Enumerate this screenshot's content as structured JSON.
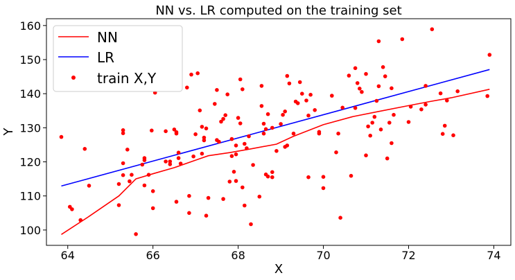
{
  "chart_data": {
    "type": "scatter",
    "title": "NN vs. LR computed on the training set",
    "xlabel": "X",
    "ylabel": "Y",
    "xlim": [
      63.5,
      74.4
    ],
    "ylim": [
      95.5,
      162
    ],
    "xticks": [
      64,
      66,
      68,
      70,
      72,
      74
    ],
    "yticks": [
      100,
      110,
      120,
      130,
      140,
      150,
      160
    ],
    "grid": false,
    "legend_position": "top-left",
    "legend": [
      {
        "label": "NN",
        "kind": "line",
        "color": "#ff0000"
      },
      {
        "label": "LR",
        "kind": "line",
        "color": "#0000ff"
      },
      {
        "label": "train X,Y",
        "kind": "marker",
        "color": "#ff0000"
      }
    ],
    "series": [
      {
        "name": "NN",
        "kind": "line",
        "color": "#ff0000",
        "points": [
          [
            63.85,
            98.7
          ],
          [
            64.5,
            104
          ],
          [
            65.2,
            110
          ],
          [
            65.6,
            115
          ],
          [
            66.0,
            116.5
          ],
          [
            66.5,
            118.3
          ],
          [
            67.0,
            120.5
          ],
          [
            67.3,
            121.8
          ],
          [
            67.8,
            122.7
          ],
          [
            68.3,
            123.8
          ],
          [
            68.9,
            125.2
          ],
          [
            69.3,
            127.5
          ],
          [
            70.0,
            130.9
          ],
          [
            70.7,
            133.3
          ],
          [
            71.3,
            134.8
          ],
          [
            72.0,
            136.5
          ],
          [
            72.5,
            137.7
          ],
          [
            73.0,
            138.8
          ],
          [
            73.9,
            141.3
          ]
        ]
      },
      {
        "name": "LR",
        "kind": "line",
        "color": "#0000ff",
        "points": [
          [
            63.85,
            112.9
          ],
          [
            73.9,
            147.1
          ]
        ]
      },
      {
        "name": "train X,Y",
        "kind": "scatter",
        "color": "#ff0000",
        "points": [
          [
            63.85,
            127.3
          ],
          [
            64.05,
            106.8
          ],
          [
            64.1,
            106.1
          ],
          [
            64.3,
            102.9
          ],
          [
            64.4,
            123.8
          ],
          [
            64.5,
            113
          ],
          [
            65.2,
            107.3
          ],
          [
            65.2,
            113.5
          ],
          [
            65.3,
            129.3
          ],
          [
            65.3,
            128.4
          ],
          [
            65.3,
            119.6
          ],
          [
            65.3,
            116.1
          ],
          [
            65.4,
            123.6
          ],
          [
            65.5,
            116.2
          ],
          [
            65.45,
            114.3
          ],
          [
            65.6,
            98.8
          ],
          [
            65.75,
            119.2
          ],
          [
            65.8,
            120.5
          ],
          [
            65.8,
            121.1
          ],
          [
            65.8,
            113.1
          ],
          [
            65.9,
            116.2
          ],
          [
            65.97,
            129.2
          ],
          [
            66.0,
            111.4
          ],
          [
            66.0,
            106.4
          ],
          [
            66.05,
            140.3
          ],
          [
            66.3,
            129.0
          ],
          [
            66.3,
            120.1
          ],
          [
            66.4,
            120.1
          ],
          [
            66.4,
            119.3
          ],
          [
            66.5,
            129.5
          ],
          [
            66.55,
            128.7
          ],
          [
            66.55,
            128.3
          ],
          [
            66.55,
            108.3
          ],
          [
            66.6,
            122.7
          ],
          [
            66.6,
            121.1
          ],
          [
            66.65,
            119.5
          ],
          [
            66.8,
            141.8
          ],
          [
            66.85,
            105.0
          ],
          [
            66.85,
            110.0
          ],
          [
            66.9,
            145.6
          ],
          [
            66.95,
            121.6
          ],
          [
            67.0,
            128.1
          ],
          [
            67.05,
            146.0
          ],
          [
            67.1,
            135.1
          ],
          [
            67.15,
            130.3
          ],
          [
            67.15,
            122.4
          ],
          [
            67.2,
            126.3
          ],
          [
            67.2,
            127.1
          ],
          [
            67.25,
            129.8
          ],
          [
            67.25,
            104.2
          ],
          [
            67.3,
            109.4
          ],
          [
            67.45,
            137.0
          ],
          [
            67.5,
            141.1
          ],
          [
            67.5,
            126.4
          ],
          [
            67.55,
            125.9
          ],
          [
            67.6,
            131.8
          ],
          [
            67.65,
            132.6
          ],
          [
            67.65,
            109.1
          ],
          [
            67.7,
            133.7
          ],
          [
            67.75,
            139.8
          ],
          [
            67.8,
            114.2
          ],
          [
            67.85,
            126.7
          ],
          [
            67.85,
            121.7
          ],
          [
            67.9,
            117.1
          ],
          [
            67.95,
            114.4
          ],
          [
            67.95,
            122.2
          ],
          [
            67.95,
            124.8
          ],
          [
            68.0,
            132.9
          ],
          [
            68.05,
            131.3
          ],
          [
            68.05,
            144.2
          ],
          [
            68.1,
            141.3
          ],
          [
            68.1,
            112.5
          ],
          [
            68.15,
            107.2
          ],
          [
            68.15,
            125.3
          ],
          [
            68.2,
            124.0
          ],
          [
            68.25,
            127.5
          ],
          [
            68.3,
            101.7
          ],
          [
            68.35,
            119.1
          ],
          [
            68.5,
            109.8
          ],
          [
            68.55,
            142.3
          ],
          [
            68.55,
            136.4
          ],
          [
            68.6,
            131.2
          ],
          [
            68.6,
            128.3
          ],
          [
            68.65,
            129.6
          ],
          [
            68.65,
            116.3
          ],
          [
            68.7,
            134.0
          ],
          [
            68.7,
            115.7
          ],
          [
            68.8,
            117.0
          ],
          [
            68.8,
            130.0
          ],
          [
            68.8,
            115.5
          ],
          [
            68.9,
            123.2
          ],
          [
            69.0,
            131.1
          ],
          [
            69.05,
            133.8
          ],
          [
            69.1,
            134.8
          ],
          [
            69.1,
            124.4
          ],
          [
            69.15,
            145.2
          ],
          [
            69.15,
            124.8
          ],
          [
            69.2,
            143.0
          ],
          [
            69.3,
            128.3
          ],
          [
            69.35,
            137.7
          ],
          [
            69.4,
            137.2
          ],
          [
            69.45,
            143.4
          ],
          [
            69.5,
            140.0
          ],
          [
            69.6,
            138.0
          ],
          [
            69.65,
            115.5
          ],
          [
            69.65,
            133.6
          ],
          [
            69.7,
            139.7
          ],
          [
            69.8,
            135.2
          ],
          [
            69.9,
            128.8
          ],
          [
            69.9,
            128.3
          ],
          [
            70.0,
            112.3
          ],
          [
            70.0,
            115.6
          ],
          [
            70.2,
            139.4
          ],
          [
            70.3,
            122.8
          ],
          [
            70.35,
            128.3
          ],
          [
            70.4,
            103.6
          ],
          [
            70.45,
            135.9
          ],
          [
            70.6,
            145.3
          ],
          [
            70.65,
            115.9
          ],
          [
            70.75,
            135.8
          ],
          [
            70.75,
            147.5
          ],
          [
            70.8,
            143.1
          ],
          [
            70.85,
            141.5
          ],
          [
            70.9,
            140.5
          ],
          [
            71.0,
            145.8
          ],
          [
            71.0,
            121.9
          ],
          [
            71.05,
            130.4
          ],
          [
            71.1,
            127.7
          ],
          [
            71.15,
            131.5
          ],
          [
            71.2,
            133.2
          ],
          [
            71.25,
            137.9
          ],
          [
            71.3,
            155.4
          ],
          [
            71.3,
            142.2
          ],
          [
            71.35,
            129.5
          ],
          [
            71.4,
            147.8
          ],
          [
            71.45,
            145.1
          ],
          [
            71.5,
            121.0
          ],
          [
            71.55,
            131.5
          ],
          [
            71.6,
            141.6
          ],
          [
            71.6,
            125.5
          ],
          [
            71.65,
            133.8
          ],
          [
            71.85,
            156.0
          ],
          [
            72.0,
            131.7
          ],
          [
            72.05,
            136.2
          ],
          [
            72.3,
            135.4
          ],
          [
            72.4,
            142.3
          ],
          [
            72.55,
            158.9
          ],
          [
            72.75,
            140.1
          ],
          [
            72.8,
            128.2
          ],
          [
            72.85,
            130.6
          ],
          [
            72.9,
            138.0
          ],
          [
            73.05,
            127.8
          ],
          [
            73.15,
            140.7
          ],
          [
            72.4,
            136.8
          ],
          [
            73.85,
            139.3
          ],
          [
            73.9,
            151.4
          ]
        ]
      }
    ]
  }
}
